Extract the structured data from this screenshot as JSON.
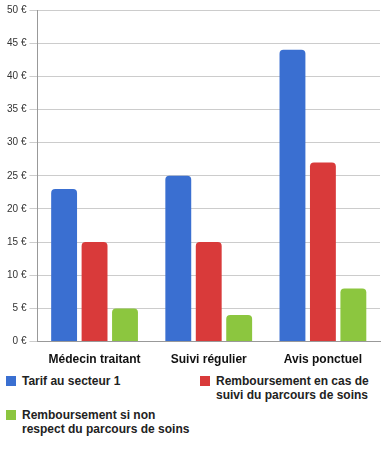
{
  "chart_data": {
    "type": "bar",
    "categories": [
      "Médecin traitant",
      "Suivi régulier",
      "Avis ponctuel"
    ],
    "series": [
      {
        "name": "Tarif au secteur 1",
        "color": "#3a6fd1",
        "values": [
          23,
          25,
          44
        ]
      },
      {
        "name": "Remboursement en cas de suivi du parcours de soins",
        "color": "#d93a3a",
        "values": [
          15,
          15,
          27
        ]
      },
      {
        "name": "Remboursement si non respect du parcours de soins",
        "color": "#8cc63f",
        "values": [
          5,
          4,
          8
        ]
      }
    ],
    "ylim": [
      0,
      50
    ],
    "yticks": [
      {
        "value": 0,
        "label": "0 €"
      },
      {
        "value": 5,
        "label": "5 €"
      },
      {
        "value": 10,
        "label": "10 €"
      },
      {
        "value": 15,
        "label": "15 €"
      },
      {
        "value": 20,
        "label": "20 €"
      },
      {
        "value": 25,
        "label": "25 €"
      },
      {
        "value": 30,
        "label": "30 €"
      },
      {
        "value": 35,
        "label": "35 €"
      },
      {
        "value": 40,
        "label": "40 €"
      },
      {
        "value": 45,
        "label": "45 €"
      },
      {
        "value": 50,
        "label": "50 €"
      }
    ],
    "grid": true,
    "legend": "bottom"
  }
}
